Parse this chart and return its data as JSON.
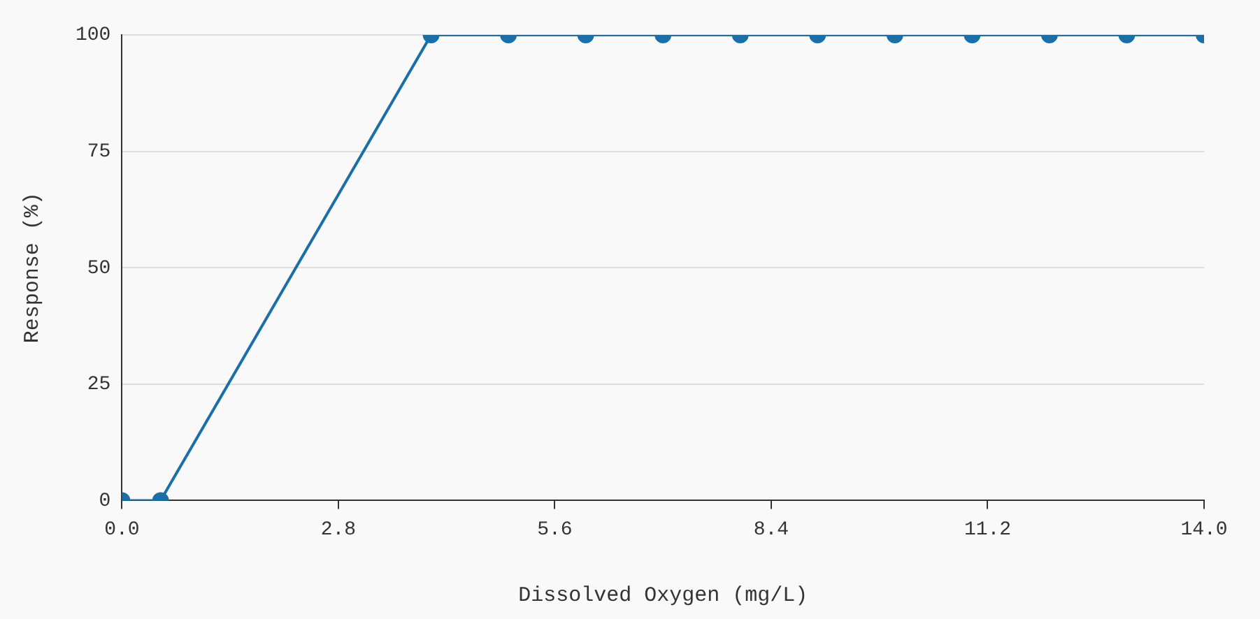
{
  "chart_data": {
    "type": "line",
    "xlabel": "Dissolved Oxygen (mg/L)",
    "ylabel": "Response (%)",
    "x": [
      0,
      0.5,
      4,
      5,
      6,
      7,
      8,
      9,
      10,
      11,
      12,
      13,
      14
    ],
    "series": [
      {
        "color": "#1a6fa8",
        "values": [
          0,
          0,
          100,
          100,
          100,
          100,
          100,
          100,
          100,
          100,
          100,
          100,
          100
        ]
      }
    ],
    "xlim": [
      0,
      14
    ],
    "xticks": [
      {
        "value": 0,
        "label": "0.0"
      },
      2.8,
      5.6,
      8.4,
      11.2,
      {
        "value": 14,
        "label": "14.0"
      }
    ],
    "ylim": [
      0,
      100
    ],
    "yticks": [
      0,
      25,
      50,
      75,
      100
    ],
    "grid": "y",
    "marker": "circle",
    "line_style": "solid",
    "legend": false
  }
}
